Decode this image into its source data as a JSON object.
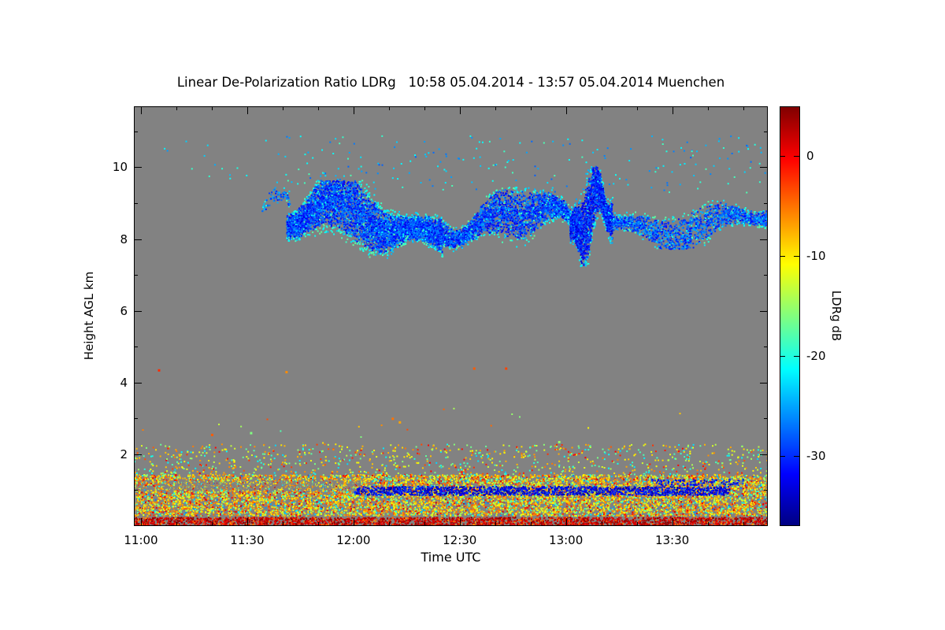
{
  "chart_data": {
    "type": "heatmap",
    "title": "Linear De-Polarization Ratio LDRg   10:58 05.04.2014 - 13:57 05.04.2014 Muenchen",
    "station": "Muenchen",
    "time_start": "10:58 05.04.2014",
    "time_end": "13:57 05.04.2014",
    "xlabel": "Time UTC",
    "ylabel": "Height AGL km",
    "x_minutes_span": 179,
    "ylim": [
      0,
      11.7
    ],
    "x_ticks": [
      {
        "minutes": 2,
        "label": "11:00"
      },
      {
        "minutes": 32,
        "label": "11:30"
      },
      {
        "minutes": 62,
        "label": "12:00"
      },
      {
        "minutes": 92,
        "label": "12:30"
      },
      {
        "minutes": 122,
        "label": "13:00"
      },
      {
        "minutes": 152,
        "label": "13:30"
      }
    ],
    "y_ticks": [
      {
        "km": 2,
        "label": "2"
      },
      {
        "km": 4,
        "label": "4"
      },
      {
        "km": 6,
        "label": "6"
      },
      {
        "km": 8,
        "label": "8"
      },
      {
        "km": 10,
        "label": "10"
      }
    ],
    "colorbar": {
      "label": "LDRg dB",
      "vmin": -37,
      "vmax": 5,
      "colormap": "jet",
      "ticks": [
        {
          "value": 0,
          "label": "0"
        },
        {
          "value": -10,
          "label": "-10"
        },
        {
          "value": -20,
          "label": "-20"
        },
        {
          "value": -30,
          "label": "-30"
        }
      ]
    },
    "features": [
      {
        "name": "mid-level-sparse",
        "kind": "speckle",
        "t": [
          0,
          179
        ],
        "h": [
          2.3,
          3.3
        ],
        "coverage": 0.0015,
        "values": [
          {
            "range": [
              -12,
              -3
            ],
            "w": 0.6
          },
          {
            "range": [
              -20,
              -13
            ],
            "w": 0.4
          }
        ]
      },
      {
        "name": "bl-top-speckle",
        "kind": "speckle",
        "t": [
          0,
          179
        ],
        "h": [
          1.45,
          2.3
        ],
        "coverage": 0.09,
        "values": [
          {
            "range": [
              -12,
              -5
            ],
            "w": 0.4
          },
          {
            "range": [
              -18,
              -12
            ],
            "w": 0.25
          },
          {
            "range": [
              -23,
              -17
            ],
            "w": 0.2
          },
          {
            "range": [
              -4,
              0
            ],
            "w": 0.15
          }
        ]
      },
      {
        "name": "bl-main-band",
        "kind": "speckle",
        "t": [
          0,
          179
        ],
        "h": [
          0.3,
          1.45
        ],
        "coverage": 0.72,
        "values": [
          {
            "range": [
              -11,
              -4
            ],
            "w": 0.52
          },
          {
            "range": [
              -15,
              -11
            ],
            "w": 0.18
          },
          {
            "range": [
              -3,
              2
            ],
            "w": 0.12
          },
          {
            "range": [
              -21,
              -15
            ],
            "w": 0.12
          },
          {
            "range": [
              -27,
              -21
            ],
            "w": 0.06
          }
        ]
      },
      {
        "name": "bl-gray-gap",
        "kind": "gray",
        "t": [
          0,
          64
        ],
        "h": [
          1.0,
          1.28
        ],
        "coverage": 0.5
      },
      {
        "name": "liquid-layer-dark-band",
        "kind": "speckle",
        "t": [
          62,
          168
        ],
        "h": [
          0.88,
          1.12
        ],
        "coverage": 0.85,
        "values": [
          {
            "range": [
              -36,
              -29
            ],
            "w": 1
          }
        ]
      },
      {
        "name": "liquid-layer-upper-wisp",
        "kind": "speckle",
        "t": [
          146,
          172
        ],
        "h": [
          1.15,
          1.32
        ],
        "coverage": 0.4,
        "values": [
          {
            "range": [
              -35,
              -28
            ],
            "w": 1
          }
        ]
      },
      {
        "name": "surface-echo-line",
        "kind": "speckle",
        "t": [
          0,
          179
        ],
        "h": [
          0.02,
          0.26
        ],
        "coverage": 0.97,
        "values": [
          {
            "range": [
              0,
              5
            ],
            "w": 0.78
          },
          {
            "range": [
              -7,
              -1
            ],
            "w": 0.22
          }
        ]
      },
      {
        "name": "cirrus-leadin-specks",
        "kind": "speckle",
        "t": [
          8,
          42
        ],
        "h": [
          9.6,
          10.8
        ],
        "coverage": 0.006,
        "values": [
          {
            "range": [
              -26,
              -19
            ],
            "w": 1
          }
        ]
      },
      {
        "name": "cirrus-top-specks",
        "kind": "speckle",
        "t": [
          42,
          179
        ],
        "h": [
          9.3,
          10.9
        ],
        "coverage": 0.015,
        "values": [
          {
            "range": [
              -28,
              -18
            ],
            "w": 1
          }
        ]
      },
      {
        "name": "ice-cloud-prewisp",
        "kind": "blob",
        "t": [
          36,
          44
        ],
        "h": [
          8.6,
          9.6
        ],
        "density": 0.15,
        "core": [
          -31,
          -24
        ],
        "fringe": [
          -23,
          -17
        ]
      },
      {
        "name": "ice-cloud-blob-a",
        "kind": "blob",
        "t": [
          43,
          87
        ],
        "h": [
          7.3,
          9.7
        ],
        "density": 0.85,
        "core": [
          -33,
          -25
        ],
        "fringe": [
          -24,
          -17
        ]
      },
      {
        "name": "ice-cloud-blob-b",
        "kind": "blob",
        "t": [
          87,
          123
        ],
        "h": [
          7.6,
          9.5
        ],
        "density": 0.6,
        "core": [
          -33,
          -25
        ],
        "fringe": [
          -24,
          -17
        ]
      },
      {
        "name": "ice-cloud-blob-c",
        "kind": "blob",
        "t": [
          123,
          135
        ],
        "h": [
          7.2,
          10.1
        ],
        "density": 0.95,
        "core": [
          -34,
          -27
        ],
        "fringe": [
          -25,
          -19
        ]
      },
      {
        "name": "ice-cloud-blob-d",
        "kind": "blob",
        "t": [
          135,
          179
        ],
        "h": [
          7.7,
          9.2
        ],
        "density": 0.4,
        "core": [
          -32,
          -24
        ],
        "fringe": [
          -23,
          -17
        ]
      },
      {
        "name": "isolated-dots",
        "kind": "dots",
        "points": [
          {
            "t": 7,
            "h": 4.35,
            "v": -2
          },
          {
            "t": 43,
            "h": 4.3,
            "v": -6
          },
          {
            "t": 96,
            "h": 4.4,
            "v": -4
          },
          {
            "t": 105,
            "h": 4.4,
            "v": -3
          },
          {
            "t": 73,
            "h": 3.0,
            "v": -5
          },
          {
            "t": 75,
            "h": 2.9,
            "v": -7
          },
          {
            "t": 22,
            "h": 2.55,
            "v": -4
          },
          {
            "t": 33,
            "h": 2.6,
            "v": -16
          },
          {
            "t": 120,
            "h": 2.35,
            "v": -15
          }
        ]
      }
    ]
  },
  "colors": {
    "background": "#ffffff",
    "nodata": "#828282",
    "frame": "#000000",
    "text": "#000000"
  }
}
